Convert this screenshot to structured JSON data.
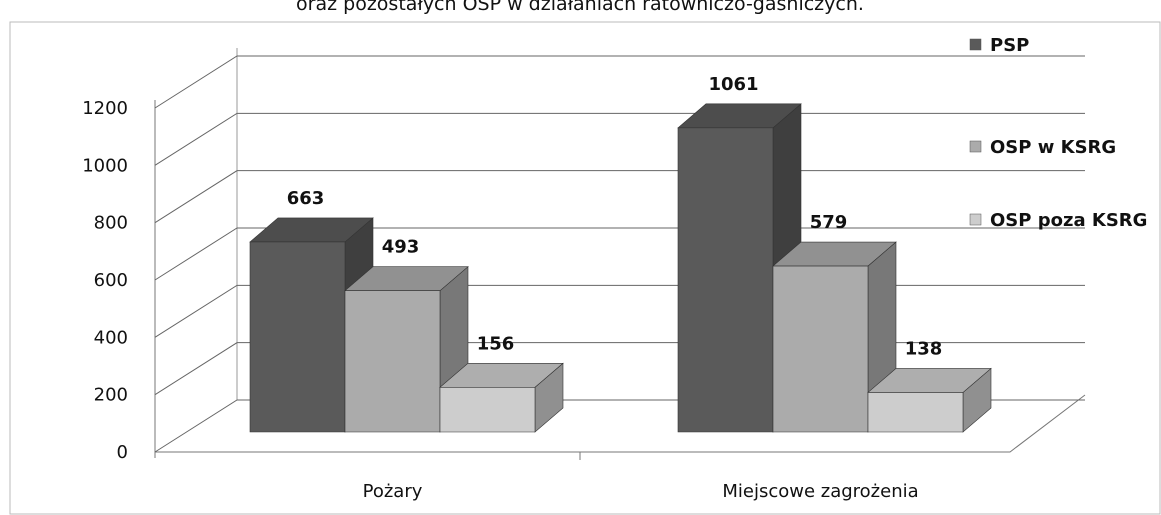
{
  "chart_data": {
    "type": "bar3d",
    "title": "oraz pozostałych OSP w działaniach ratowniczo-gaśniczych.",
    "categories": [
      "Pożary",
      "Miejscowe zagrożenia"
    ],
    "series": [
      {
        "name": "PSP",
        "color": "#5a5a5a",
        "values": [
          663,
          1061
        ]
      },
      {
        "name": "OSP w KSRG",
        "color": "#ababab",
        "values": [
          493,
          579
        ]
      },
      {
        "name": "OSP poza KSRG",
        "color": "#cdcdcd",
        "values": [
          156,
          138
        ]
      }
    ],
    "ylim": [
      0,
      1200
    ],
    "yticks": [
      0,
      200,
      400,
      600,
      800,
      1000,
      1200
    ],
    "grid": true,
    "legend": "right"
  }
}
